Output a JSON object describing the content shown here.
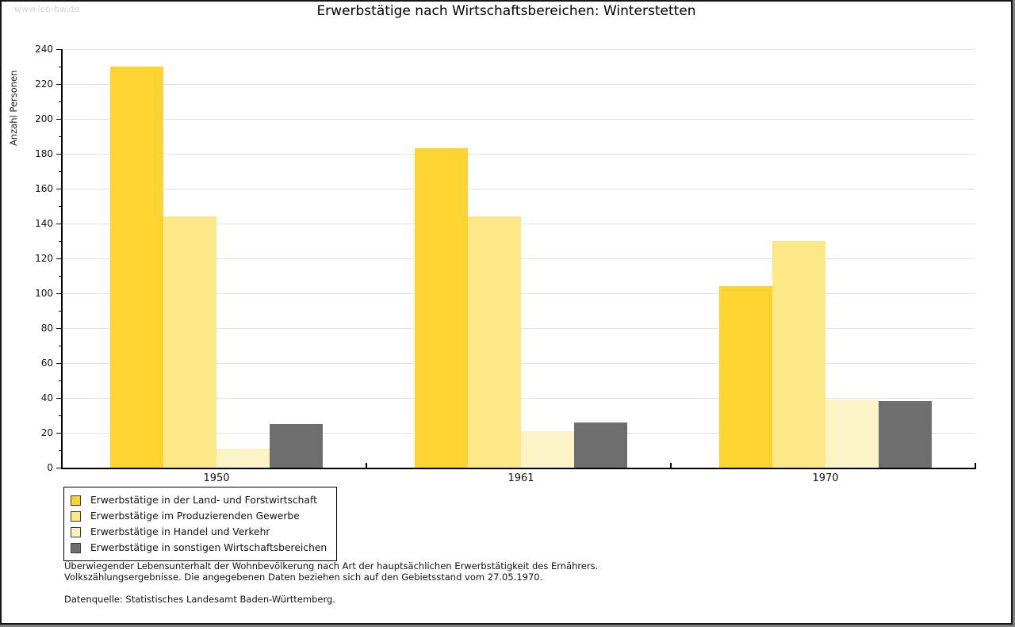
{
  "watermark": "www.leo-bw.de",
  "chart_data": {
    "type": "bar",
    "title": "Erwerbstätige nach Wirtschaftsbereichen: Winterstetten",
    "ylabel": "Anzahl Personen",
    "xlabel": "",
    "categories": [
      "1950",
      "1961",
      "1970"
    ],
    "series": [
      {
        "name": "Erwerbstätige in der Land- und Forstwirtschaft",
        "color": "#fcd32f",
        "values": [
          230,
          183,
          104
        ]
      },
      {
        "name": "Erwerbstätige im Produzierenden Gewerbe",
        "color": "#fce886",
        "values": [
          144,
          144,
          130
        ]
      },
      {
        "name": "Erwerbstätige in Handel und Verkehr",
        "color": "#fbf3c6",
        "values": [
          11,
          21,
          39
        ]
      },
      {
        "name": "Erwerbstätige in sonstigen Wirtschaftsbereichen",
        "color": "#6e6e6e",
        "values": [
          25,
          26,
          38
        ]
      }
    ],
    "ylim": [
      0,
      240
    ],
    "ytick_step": 20,
    "yminor_step": 10,
    "grid": true,
    "legend_position": "bottom-left"
  },
  "footnotes": {
    "line1": "Überwiegender Lebensunterhalt der Wohnbevölkerung nach Art der hauptsächlichen Erwerbstätigkeit des Ernährers.",
    "line2": "Volkszählungsergebnisse. Die angegebenen Daten beziehen sich auf den Gebietsstand vom 27.05.1970.",
    "source": "Datenquelle: Statistisches Landesamt Baden-Württemberg."
  }
}
